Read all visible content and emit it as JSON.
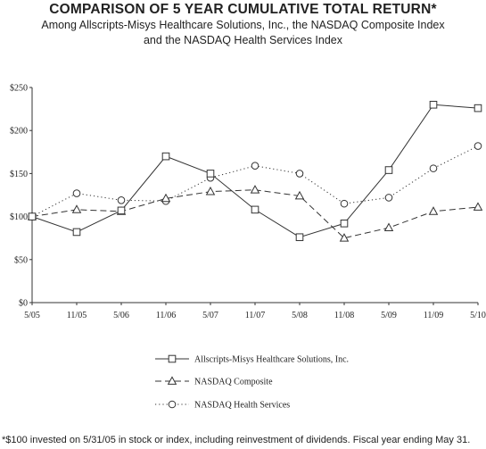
{
  "chart_data": {
    "type": "line",
    "title": "COMPARISON OF 5 YEAR CUMULATIVE TOTAL RETURN*",
    "subtitle": [
      "Among Allscripts-Misys Healthcare Solutions, Inc., the NASDAQ Composite Index",
      "and the NASDAQ Health Services Index"
    ],
    "categories": [
      "5/05",
      "11/05",
      "5/06",
      "11/06",
      "5/07",
      "11/07",
      "5/08",
      "11/08",
      "5/09",
      "11/09",
      "5/10"
    ],
    "y_ticks": [
      "$0",
      "$50",
      "$100",
      "$150",
      "$200",
      "$250"
    ],
    "ylim": [
      0,
      250
    ],
    "grid": false,
    "legend_position": "bottom-center",
    "series": [
      {
        "name": "Allscripts-Misys Healthcare Solutions, Inc.",
        "marker": "square",
        "line_style": "solid",
        "values": [
          100,
          82,
          107,
          170,
          150,
          108,
          76,
          92,
          154,
          230,
          226
        ]
      },
      {
        "name": "NASDAQ Composite",
        "marker": "triangle",
        "line_style": "dashed",
        "values": [
          100,
          108,
          106,
          121,
          129,
          131,
          124,
          75,
          87,
          106,
          111
        ]
      },
      {
        "name": "NASDAQ Health Services",
        "marker": "circle",
        "line_style": "dotted",
        "values": [
          100,
          127,
          119,
          118,
          145,
          159,
          150,
          115,
          122,
          156,
          182
        ]
      }
    ]
  },
  "footnote": "*$100 invested on 5/31/05 in stock or index, including reinvestment of dividends. Fiscal year ending May 31.",
  "colors": {
    "line": "#333333",
    "axis": "#333333"
  }
}
